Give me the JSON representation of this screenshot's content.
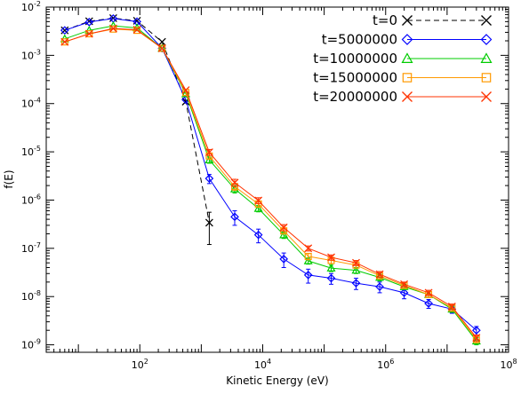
{
  "chart_data": {
    "type": "line",
    "title": "",
    "xlabel": "Kinetic Energy (eV)",
    "ylabel": "f(E)",
    "x_scale": "log",
    "y_scale": "log",
    "xlim": [
      3,
      100000000
    ],
    "ylim": [
      7e-10,
      0.01
    ],
    "x_ticks": [
      {
        "value": 100,
        "base": "10",
        "exp": "2"
      },
      {
        "value": 10000,
        "base": "10",
        "exp": "4"
      },
      {
        "value": 1000000,
        "base": "10",
        "exp": "6"
      },
      {
        "value": 100000000,
        "base": "10",
        "exp": "8"
      }
    ],
    "y_ticks": [
      {
        "value": 0.01,
        "base": "10",
        "exp": "-2"
      },
      {
        "value": 0.001,
        "base": "10",
        "exp": "-3"
      },
      {
        "value": 0.0001,
        "base": "10",
        "exp": "-4"
      },
      {
        "value": 1e-05,
        "base": "10",
        "exp": "-5"
      },
      {
        "value": 1e-06,
        "base": "10",
        "exp": "-6"
      },
      {
        "value": 1e-07,
        "base": "10",
        "exp": "-7"
      },
      {
        "value": 1e-08,
        "base": "10",
        "exp": "-8"
      },
      {
        "value": 1e-09,
        "base": "10",
        "exp": "-9"
      }
    ],
    "grid": false,
    "legend_position": "top-right",
    "series": [
      {
        "name": "t=0",
        "color": "#000000",
        "marker": "x",
        "dashed": true,
        "x": [
          6,
          15,
          37,
          90,
          230,
          560,
          1350
        ],
        "y": [
          0.0033,
          0.0051,
          0.0059,
          0.0052,
          0.0019,
          0.00011,
          3.4e-07
        ],
        "yerr": [
          0,
          0,
          0,
          0,
          0,
          0,
          2.2e-07
        ]
      },
      {
        "name": "t=5000000",
        "color": "#0000ff",
        "marker": "diamond",
        "dashed": false,
        "x": [
          6,
          15,
          37,
          90,
          230,
          560,
          1350,
          3500,
          8500,
          22000,
          55000,
          130000,
          330000,
          800000,
          2000000,
          5000000,
          12000000,
          30000000
        ],
        "y": [
          0.0033,
          0.0049,
          0.0058,
          0.005,
          0.0014,
          0.00012,
          2.8e-06,
          4.5e-07,
          1.9e-07,
          6e-08,
          2.8e-08,
          2.4e-08,
          1.9e-08,
          1.6e-08,
          1.2e-08,
          7.2e-09,
          5.5e-09,
          2e-09
        ],
        "yerr": [
          0,
          0,
          0,
          0,
          0,
          0,
          6e-07,
          1.5e-07,
          6e-08,
          2e-08,
          9e-09,
          6e-09,
          5e-09,
          4e-09,
          3e-09,
          1.5e-09,
          1e-09,
          4e-10
        ]
      },
      {
        "name": "t=10000000",
        "color": "#00cc00",
        "marker": "triangle",
        "dashed": false,
        "x": [
          6,
          15,
          37,
          90,
          230,
          560,
          1350,
          3500,
          8500,
          22000,
          55000,
          130000,
          330000,
          800000,
          2000000,
          5000000,
          12000000,
          30000000
        ],
        "y": [
          0.0022,
          0.0033,
          0.0041,
          0.0037,
          0.0014,
          0.00016,
          6.8e-06,
          1.7e-06,
          6.7e-07,
          1.9e-07,
          5.5e-08,
          3.9e-08,
          3.5e-08,
          2.5e-08,
          1.6e-08,
          1.1e-08,
          5.5e-09,
          1.2e-09
        ],
        "yerr": [
          0,
          0,
          0,
          0,
          0,
          0,
          1e-06,
          3e-07,
          1e-07,
          3e-08,
          8e-09,
          6e-09,
          5e-09,
          4e-09,
          2e-09,
          1.5e-09,
          8e-10,
          2e-10
        ]
      },
      {
        "name": "t=15000000",
        "color": "#ff9900",
        "marker": "square",
        "dashed": false,
        "x": [
          6,
          15,
          37,
          90,
          230,
          560,
          1350,
          3500,
          8500,
          22000,
          55000,
          130000,
          330000,
          800000,
          2000000,
          5000000,
          12000000,
          30000000
        ],
        "y": [
          0.0019,
          0.0028,
          0.0035,
          0.0033,
          0.0014,
          0.00017,
          8.2e-06,
          1.9e-06,
          8.3e-07,
          2.3e-07,
          6.8e-08,
          5.6e-08,
          4.5e-08,
          2.7e-08,
          1.7e-08,
          1.1e-08,
          5.8e-09,
          1.3e-09
        ],
        "yerr": [
          0,
          0,
          0,
          0,
          0,
          0,
          1.2e-06,
          3e-07,
          1.2e-07,
          3e-08,
          1e-08,
          8e-09,
          6e-09,
          4e-09,
          2e-09,
          1.5e-09,
          8e-10,
          2e-10
        ]
      },
      {
        "name": "t=20000000",
        "color": "#ff3300",
        "marker": "x",
        "dashed": false,
        "x": [
          6,
          15,
          37,
          90,
          230,
          560,
          1350,
          3500,
          8500,
          22000,
          55000,
          130000,
          330000,
          800000,
          2000000,
          5000000,
          12000000,
          30000000
        ],
        "y": [
          0.0019,
          0.0028,
          0.0036,
          0.0034,
          0.0014,
          0.00019,
          9.8e-06,
          2.3e-06,
          9.8e-07,
          2.7e-07,
          1e-07,
          6.5e-08,
          5e-08,
          2.9e-08,
          1.8e-08,
          1.2e-08,
          6.2e-09,
          1.4e-09
        ],
        "yerr": [
          0,
          0,
          0,
          0,
          0,
          0,
          1.4e-06,
          4e-07,
          1.4e-07,
          4e-08,
          1.2e-08,
          8e-09,
          6e-09,
          4e-09,
          2e-09,
          1.5e-09,
          8e-10,
          2e-10
        ]
      }
    ]
  }
}
